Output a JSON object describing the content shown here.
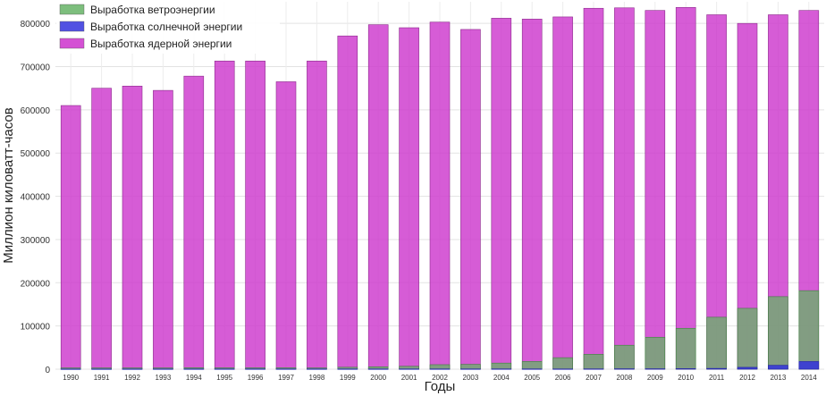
{
  "chart_data": {
    "type": "bar",
    "xlabel": "Годы",
    "ylabel": "Миллион киловатт-часов",
    "ylim": [
      0,
      850000
    ],
    "yticks": [
      0,
      100000,
      200000,
      300000,
      400000,
      500000,
      600000,
      700000,
      800000
    ],
    "grid": true,
    "legend_position": "top-left",
    "categories": [
      "1990",
      "1991",
      "1992",
      "1993",
      "1994",
      "1995",
      "1996",
      "1997",
      "1998",
      "1999",
      "2000",
      "2001",
      "2002",
      "2003",
      "2004",
      "2005",
      "2006",
      "2007",
      "2008",
      "2009",
      "2010",
      "2011",
      "2012",
      "2013",
      "2014"
    ],
    "series": [
      {
        "name": "Выработка ветроэнергии",
        "color": "#66b366",
        "values": [
          3000,
          3000,
          3000,
          3000,
          3400,
          3200,
          3200,
          3300,
          3000,
          4500,
          5600,
          6700,
          10400,
          11200,
          14100,
          17800,
          26600,
          34400,
          55400,
          73900,
          94600,
          120200,
          140800,
          167800,
          181700
        ]
      },
      {
        "name": "Выработка солнечной энергии",
        "color": "#3333dd",
        "values": [
          370,
          400,
          430,
          460,
          480,
          500,
          520,
          510,
          500,
          500,
          490,
          540,
          550,
          530,
          580,
          550,
          510,
          610,
          860,
          890,
          1200,
          1800,
          4300,
          9000,
          17700
        ]
      },
      {
        "name": "Выработка ядерной энергии",
        "color": "#cc33cc",
        "values": [
          610000,
          650000,
          655000,
          645000,
          678000,
          713000,
          713000,
          665000,
          713000,
          771000,
          797000,
          790000,
          803000,
          786000,
          812000,
          810000,
          815000,
          835000,
          836000,
          830000,
          837000,
          820000,
          800000,
          820000,
          830000
        ]
      }
    ]
  }
}
